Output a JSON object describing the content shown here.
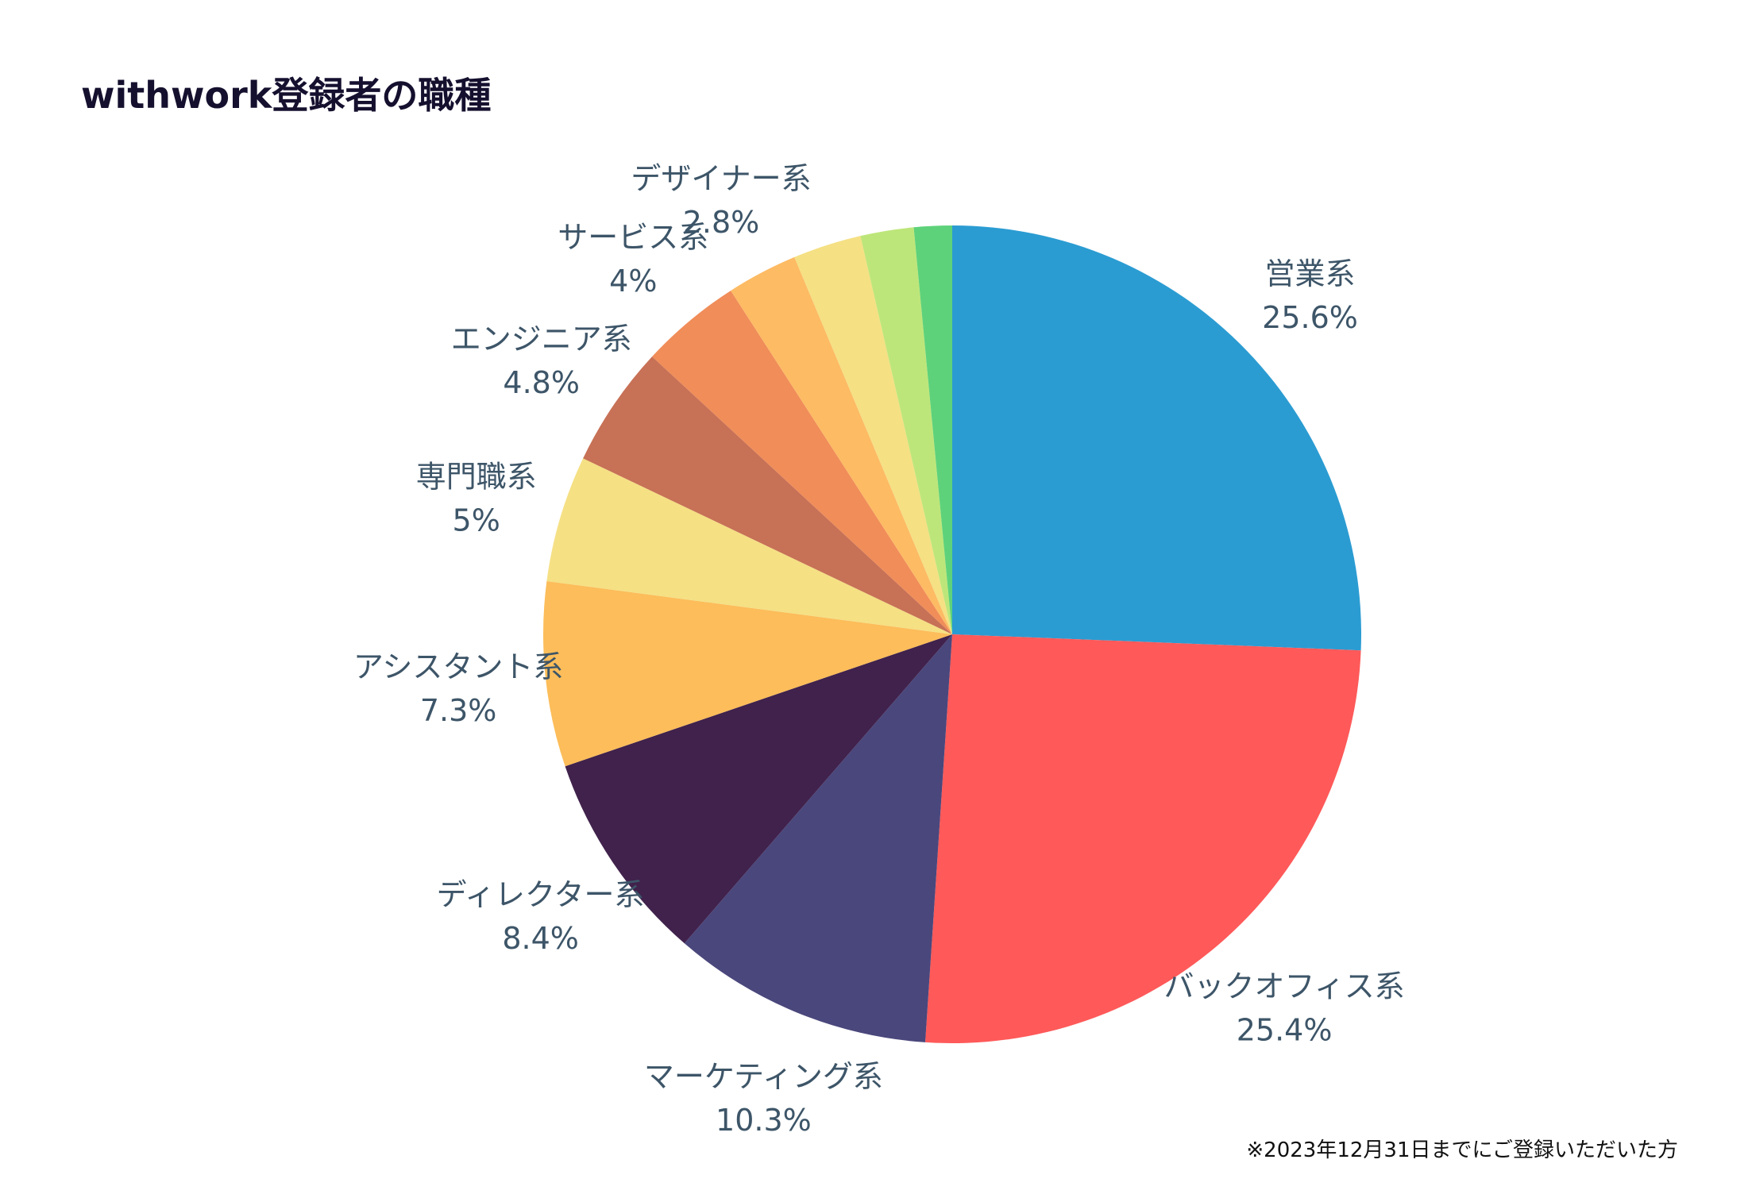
{
  "chart_data": {
    "type": "pie",
    "title": "withwork登録者の職種",
    "start_angle_deg": 0,
    "direction": "clockwise",
    "slices": [
      {
        "label": "営業系",
        "value": 25.6,
        "value_text": "25.6%",
        "color": "#2b9cd2"
      },
      {
        "label": "バックオフィス系",
        "value": 25.4,
        "value_text": "25.4%",
        "color": "#ff5959"
      },
      {
        "label": "マーケティング系",
        "value": 10.3,
        "value_text": "10.3%",
        "color": "#4a477c"
      },
      {
        "label": "ディレクター系",
        "value": 8.4,
        "value_text": "8.4%",
        "color": "#40224c"
      },
      {
        "label": "アシスタント系",
        "value": 7.3,
        "value_text": "7.3%",
        "color": "#fcbd5a"
      },
      {
        "label": "専門職系",
        "value": 5,
        "value_text": "5%",
        "color": "#f5e084"
      },
      {
        "label": "エンジニア系",
        "value": 4.8,
        "value_text": "4.8%",
        "color": "#c77156"
      },
      {
        "label": "サービス系",
        "value": 4,
        "value_text": "4%",
        "color": "#f08d59"
      },
      {
        "label": "デザイナー系",
        "value": 2.8,
        "value_text": "2.8%",
        "color": "#fdbb64"
      },
      {
        "label": "",
        "value": 2.7,
        "value_text": "",
        "color": "#f5e084"
      },
      {
        "label": "",
        "value": 2.1,
        "value_text": "",
        "color": "#bde67a"
      },
      {
        "label": "",
        "value": 1.5,
        "value_text": "",
        "color": "#5ed27a"
      }
    ],
    "legend": "none"
  },
  "footnote": "※2023年12月31日までにご登録いただいた方"
}
